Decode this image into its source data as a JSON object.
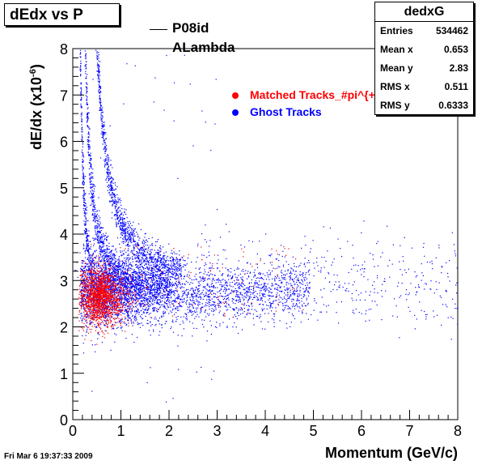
{
  "title": "dEdx vs P",
  "legend_header": {
    "line1": "P08id",
    "line2": "ALambda"
  },
  "stats": {
    "name": "dedxG",
    "rows": [
      {
        "key": "Entries",
        "value": "534462"
      },
      {
        "key": "Mean x",
        "value": "0.653"
      },
      {
        "key": "Mean y",
        "value": "2.83"
      },
      {
        "key": "RMS x",
        "value": "0.511"
      },
      {
        "key": "RMS y",
        "value": "0.6333"
      }
    ]
  },
  "footer_timestamp": "Fri Mar  6 19:37:33 2009",
  "chart_data": {
    "type": "scatter",
    "xlabel": "Momentum  (GeV/c)",
    "ylabel_main": "dE/dx (x10",
    "ylabel_sup": "-6",
    "ylabel_close": ")",
    "xlim": [
      0,
      8
    ],
    "ylim": [
      0,
      8
    ],
    "x_ticks": [
      "0",
      "1",
      "2",
      "3",
      "4",
      "5",
      "6",
      "7",
      "8"
    ],
    "y_ticks": [
      "0",
      "1",
      "2",
      "3",
      "4",
      "5",
      "6",
      "7",
      "8"
    ],
    "grid": false,
    "legend_position": "top-right",
    "series": [
      {
        "name": "Matched Tracks_#pi^{+}",
        "color": "#ff0000",
        "clusters": [
          {
            "x_center": 0.55,
            "y_center": 2.65,
            "x_spread": 0.35,
            "y_spread": 0.3
          }
        ]
      },
      {
        "name": "Ghost Tracks",
        "color": "#0000ff",
        "bands": [
          {
            "label": "pion band",
            "x_range": [
              0.1,
              5.0
            ],
            "y_at_low_x": 2.1,
            "y_floor": 2.55
          },
          {
            "label": "kaon band",
            "x_range": [
              0.25,
              2.0
            ],
            "y_at_low_x": 8.0,
            "y_floor": 2.8
          },
          {
            "label": "proton band",
            "x_range": [
              0.5,
              2.2
            ],
            "y_at_low_x": 8.0,
            "y_floor": 3.0
          }
        ],
        "tail": {
          "x_range": [
            2.5,
            8.0
          ],
          "y_center": 3.0,
          "y_spread": 0.45
        }
      }
    ]
  }
}
